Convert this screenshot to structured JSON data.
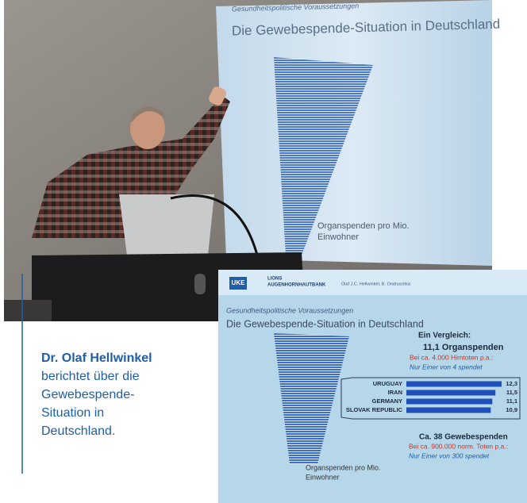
{
  "caption": {
    "name": "Dr. Olaf Hellwinkel",
    "lines": [
      "berichtet über die",
      "Gewebespende-",
      "Situation in",
      "Deutschland."
    ]
  },
  "photo_slide": {
    "section": "Gesundheitspolitische Voraussetzungen",
    "title": "Die Gewebespende-Situation in Deutschland",
    "chart_label": [
      "Organspenden pro Mio.",
      "Einwohner"
    ]
  },
  "inset_slide": {
    "logo": "UKE",
    "org": [
      "LIONS",
      "AUGENHORNHAUTBANK"
    ],
    "authors": "Olaf J.C. Hellwinkel, B. Ondruschka",
    "section": "Gesundheitspolitische Voraussetzungen",
    "title": "Die Gewebespende-Situation in Deutschland",
    "compare_heading": "Ein Vergleich:",
    "organ_heading": "11,1 Organspenden",
    "organ_note": "Bei ca. 4.000 Hirntoten p.a.:",
    "organ_ratio": "Nur Einer von 4 spendet",
    "countries": [
      {
        "name": "URUGUAY",
        "value": 12.3,
        "label": "12,3"
      },
      {
        "name": "IRAN",
        "value": 11.5,
        "label": "11,5"
      },
      {
        "name": "GERMANY",
        "value": 11.1,
        "label": "11,1"
      },
      {
        "name": "SLOVAK REPUBLIC",
        "value": 10.9,
        "label": "10,9"
      }
    ],
    "tissue_heading": "Ca. 38 Gewebespenden",
    "tissue_note": "Bei ca. 900.000 norm. Toten p.a.:",
    "tissue_ratio": "Nur Einer von 300 spendet",
    "chart_label": [
      "Organspenden pro Mio.",
      "Einwohner"
    ]
  }
}
